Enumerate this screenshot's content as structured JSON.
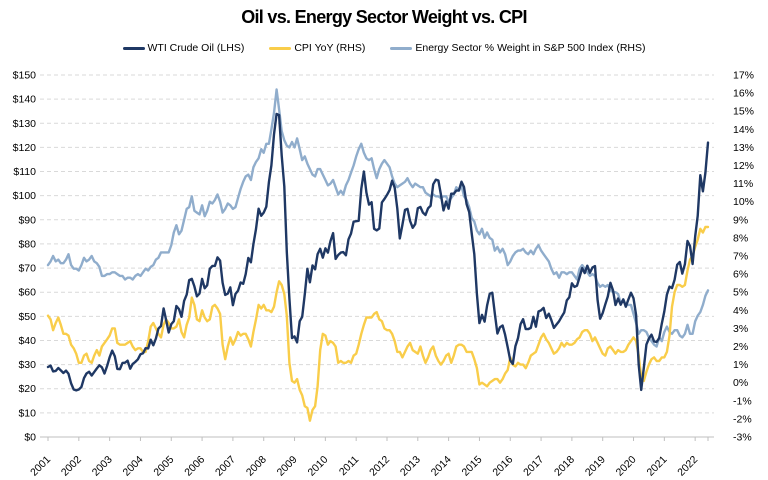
{
  "title": "Oil vs. Energy Sector Weight vs. CPI",
  "legend": [
    {
      "label": "WTI Crude Oil (LHS)",
      "color": "#1F3864"
    },
    {
      "label": "CPI YoY (RHS)",
      "color": "#F9CD4A"
    },
    {
      "label": "Energy Sector % Weight in S&P 500 Index (RHS)",
      "color": "#90ADCC"
    }
  ],
  "colors": {
    "gridline": "#D9D9D9",
    "axis_line": "#BFBFBF",
    "label_text": "#000000"
  },
  "chart_data": {
    "type": "line",
    "title": "Oil vs. Energy Sector Weight vs. CPI",
    "x_unit": "monthly",
    "x_range": [
      "2001-01",
      "2022-06"
    ],
    "x_tick_labels": [
      "2001",
      "2002",
      "2003",
      "2004",
      "2005",
      "2006",
      "2007",
      "2008",
      "2009",
      "2010",
      "2011",
      "2012",
      "2013",
      "2014",
      "2015",
      "2016",
      "2017",
      "2018",
      "2019",
      "2020",
      "2021",
      "2022"
    ],
    "left_axis": {
      "min": 0,
      "max": 150,
      "step": 10,
      "tick_labels": [
        "$150",
        "$140",
        "$130",
        "$120",
        "$110",
        "$100",
        "$90",
        "$80",
        "$70",
        "$60",
        "$50",
        "$40",
        "$30",
        "$20",
        "$10",
        "$0"
      ]
    },
    "right_axis": {
      "min": -3,
      "max": 17,
      "step": 1,
      "tick_labels": [
        "17%",
        "16%",
        "15%",
        "14%",
        "13%",
        "12%",
        "11%",
        "10%",
        "9%",
        "8%",
        "7%",
        "6%",
        "5%",
        "4%",
        "3%",
        "2%",
        "1%",
        "0%",
        "-1%",
        "-2%",
        "-3%"
      ]
    },
    "grid": "horizontal-dashed",
    "legend_position": "top",
    "series": [
      {
        "name": "WTI Crude Oil (LHS)",
        "axis": "left",
        "color": "#1F3864",
        "values": [
          29,
          29.6,
          27.2,
          27.4,
          28.6,
          27.6,
          26.5,
          27.5,
          26.2,
          22.2,
          19.7,
          19.3,
          19.7,
          20.7,
          24.4,
          26.3,
          27,
          25.5,
          26.9,
          28.4,
          29.7,
          28.9,
          26.3,
          29.4,
          33,
          35.8,
          33.5,
          28.2,
          28.1,
          30.7,
          30.8,
          31.6,
          28.3,
          30.3,
          31.1,
          32.2,
          34.3,
          34.7,
          36.8,
          36.7,
          40.3,
          38,
          40.8,
          44.9,
          46,
          53.3,
          48.5,
          43.3,
          46.8,
          48,
          54.3,
          53,
          49.8,
          56.4,
          59,
          65,
          65.5,
          62.4,
          58.3,
          59.4,
          65.5,
          61.6,
          62.9,
          69.7,
          70.9,
          70.9,
          74.4,
          73.1,
          63.9,
          58.9,
          59.4,
          62,
          54.6,
          59.3,
          60.6,
          64,
          63.5,
          67.5,
          74.2,
          72.4,
          79.9,
          86.2,
          94.6,
          91.7,
          93,
          95.4,
          105.6,
          112.6,
          125.4,
          133.9,
          133.4,
          116.6,
          103.9,
          76.7,
          57.4,
          41,
          41.7,
          39.2,
          48,
          49.8,
          59.2,
          69.7,
          64.1,
          71.1,
          69.5,
          75.8,
          78,
          74.3,
          78.2,
          76.4,
          81.2,
          84.5,
          73.8,
          75.4,
          76.4,
          76.6,
          75.3,
          81.9,
          84.3,
          89.2,
          89.4,
          89.6,
          102.9,
          110,
          101.3,
          96.3,
          97.3,
          86.3,
          85.6,
          86.4,
          97.2,
          98.6,
          100.3,
          102.3,
          106.2,
          103.3,
          94.7,
          82.3,
          87.9,
          94.1,
          94.5,
          89.5,
          86.7,
          88.2,
          94.8,
          95.3,
          93,
          92,
          94.8,
          95.8,
          104.7,
          106.6,
          106.3,
          100.5,
          93.9,
          97.6,
          94.6,
          100.8,
          100.8,
          102.1,
          102.2,
          105.8,
          103.6,
          96.5,
          93.2,
          84.4,
          75.8,
          59.3,
          47.2,
          50.6,
          47.8,
          54.5,
          59.3,
          59.8,
          51.2,
          42.9,
          45.5,
          46.2,
          42.4,
          37.2,
          31.7,
          30.3,
          37.6,
          41,
          46.7,
          48.8,
          44.7,
          44.7,
          45.2,
          49.8,
          45.7,
          52,
          52.5,
          53.5,
          49.3,
          51.1,
          48.5,
          45.2,
          46.6,
          48,
          49.8,
          51.6,
          56.6,
          57.9,
          63.7,
          62.2,
          62.7,
          66.3,
          70,
          67.9,
          71,
          68.1,
          70.2,
          70.8,
          56.7,
          49,
          51.4,
          55,
          58.2,
          63.9,
          60.8,
          54.7,
          57.4,
          54.8,
          57,
          54,
          57,
          59.8,
          57.5,
          50.5,
          29.9,
          19.5,
          28.6,
          38.3,
          40.8,
          42.4,
          39.6,
          39.4,
          41,
          47,
          52,
          59,
          62.3,
          61.7,
          65.2,
          71.4,
          72.5,
          67.7,
          71.6,
          81.2,
          79.2,
          71.7,
          83.2,
          91.6,
          108.5,
          101.8,
          109.5,
          122
        ]
      },
      {
        "name": "CPI YoY (RHS)",
        "axis": "right",
        "color": "#F9CD4A",
        "values": [
          3.7,
          3.5,
          2.9,
          3.3,
          3.6,
          3.2,
          2.7,
          2.7,
          2.6,
          2.1,
          1.9,
          1.6,
          1.1,
          1.1,
          1.5,
          1.6,
          1.2,
          1.1,
          1.5,
          1.8,
          1.5,
          2,
          2.2,
          2.4,
          2.6,
          3,
          3,
          2.2,
          2.1,
          2.1,
          2.1,
          2.2,
          2.3,
          2,
          1.8,
          1.9,
          1.9,
          1.7,
          1.7,
          2.3,
          3.1,
          3.3,
          3,
          2.7,
          2.5,
          3.2,
          3.5,
          3.3,
          3,
          3,
          3.1,
          3.5,
          2.8,
          2.5,
          3.2,
          3.6,
          4.7,
          4.3,
          3.5,
          3.4,
          4,
          3.6,
          3.4,
          3.5,
          4.2,
          4.3,
          4.1,
          3.8,
          2.1,
          1.3,
          2,
          2.5,
          2.1,
          2.4,
          2.8,
          2.6,
          2.7,
          2.7,
          2.4,
          2,
          2.8,
          3.5,
          4.3,
          4.1,
          4.3,
          4,
          4,
          3.9,
          4.2,
          5,
          5.6,
          5.4,
          4.9,
          3.7,
          1.1,
          0.1,
          0,
          0.2,
          -0.4,
          -0.7,
          -1.3,
          -1.4,
          -2.1,
          -1.5,
          -1.3,
          -0.2,
          1.8,
          2.7,
          2.6,
          2.1,
          2.3,
          2.2,
          2,
          1.1,
          1.2,
          1.1,
          1.1,
          1.2,
          1.1,
          1.5,
          1.6,
          2.1,
          2.7,
          3.2,
          3.6,
          3.6,
          3.6,
          3.8,
          3.9,
          3.5,
          3.4,
          3,
          2.9,
          2.9,
          2.7,
          2.3,
          1.7,
          1.7,
          1.4,
          1.7,
          2,
          2.2,
          1.8,
          1.7,
          1.6,
          2,
          1.5,
          1.1,
          1.4,
          1.8,
          2,
          1.5,
          1.2,
          1,
          1.2,
          1.5,
          1.6,
          1.1,
          1.5,
          2,
          2.1,
          2.1,
          2,
          1.7,
          1.7,
          1.7,
          1.3,
          0.8,
          -0.1,
          0,
          -0.1,
          -0.2,
          0,
          0.1,
          0.2,
          0.2,
          0,
          0.2,
          0.5,
          0.7,
          1.4,
          1,
          0.9,
          1.1,
          1,
          1,
          0.8,
          1.1,
          1.5,
          1.6,
          1.7,
          2.1,
          2.5,
          2.7,
          2.4,
          2.2,
          1.9,
          1.6,
          1.7,
          1.9,
          2.2,
          2,
          2.2,
          2.1,
          2.1,
          2.2,
          2.4,
          2.5,
          2.8,
          2.9,
          2.9,
          2.7,
          2.3,
          2.5,
          2.2,
          1.9,
          1.6,
          1.5,
          1.9,
          2,
          1.8,
          1.6,
          1.8,
          1.7,
          1.7,
          1.8,
          2.1,
          2.3,
          2.5,
          2.3,
          1.5,
          0.3,
          0.1,
          0.6,
          1,
          1.3,
          1.4,
          1.2,
          1.2,
          1.4,
          1.4,
          1.7,
          2.6,
          4.2,
          5,
          5.4,
          5.4,
          5.3,
          5.4,
          6.2,
          6.8,
          7,
          7.5,
          7.9,
          8.5,
          8.3,
          8.6,
          8.6
        ]
      },
      {
        "name": "Energy Sector % Weight in S&P 500 Index (RHS)",
        "axis": "right",
        "color": "#90ADCC",
        "values": [
          6.5,
          6.7,
          7,
          6.7,
          6.8,
          6.6,
          6.6,
          6.8,
          7.1,
          6.5,
          6.3,
          6.3,
          6.2,
          6.5,
          6.9,
          6.7,
          6.8,
          7,
          6.7,
          6.6,
          6.4,
          5.9,
          5.9,
          6,
          6,
          6.1,
          6.1,
          6,
          5.9,
          5.9,
          5.7,
          5.8,
          5.8,
          5.7,
          5.9,
          6,
          5.9,
          6.1,
          6.3,
          6.2,
          6.4,
          6.5,
          6.8,
          6.9,
          7.2,
          7.2,
          7.2,
          7.2,
          7.6,
          8.3,
          8.7,
          8.2,
          8.4,
          9,
          9.6,
          9.7,
          10.3,
          9.5,
          9.4,
          9.3,
          9.8,
          9.2,
          9.5,
          10,
          9.9,
          10.1,
          10.4,
          10,
          9.4,
          9.6,
          9.9,
          9.8,
          9.6,
          9.7,
          10.2,
          10.7,
          11.1,
          11.4,
          11.5,
          11.2,
          11.9,
          12.2,
          12.4,
          12.9,
          12.7,
          13.2,
          13.2,
          14,
          14.9,
          16.2,
          15.1,
          13.9,
          13.4,
          13.1,
          13,
          13.3,
          13,
          13.5,
          12.9,
          12.3,
          12.5,
          12.1,
          11.8,
          11.5,
          11.4,
          11.8,
          11.8,
          11.5,
          11.2,
          10.9,
          11,
          11.2,
          10.8,
          10.4,
          10.6,
          10.4,
          10.9,
          11.2,
          11.6,
          12,
          12.5,
          12.9,
          13.2,
          12.7,
          12.4,
          12.3,
          12.4,
          11.8,
          11.3,
          11.8,
          12.1,
          12.3,
          12.1,
          11.9,
          11.4,
          11,
          10.8,
          10.9,
          11,
          11.1,
          11.3,
          11,
          10.8,
          11,
          10.9,
          10.8,
          10.8,
          10.5,
          10.4,
          10.3,
          10.4,
          10.3,
          10.3,
          10.2,
          10.3,
          10.3,
          10,
          10.2,
          10.4,
          10.8,
          10.6,
          10.9,
          10.3,
          10.1,
          9.7,
          9.1,
          8.9,
          8.4,
          8.2,
          8.5,
          8,
          8.3,
          8,
          7.9,
          7.3,
          7.5,
          7.2,
          7.4,
          7.1,
          6.5,
          6.7,
          7,
          7.2,
          7.3,
          7.3,
          7.4,
          7.2,
          7.1,
          7.3,
          7.1,
          7.4,
          7.6,
          7.3,
          7.1,
          6.9,
          6.7,
          6.3,
          6,
          6.1,
          5.8,
          6.1,
          6.1,
          6,
          6.1,
          6.1,
          5.9,
          5.7,
          6.3,
          6.5,
          6.3,
          6.1,
          5.9,
          6,
          5.9,
          5.5,
          5.3,
          5.4,
          5.3,
          5.4,
          5.1,
          5,
          5,
          4.9,
          4.4,
          4.6,
          4.3,
          4.3,
          4.3,
          3.8,
          3.3,
          2.7,
          2.9,
          2.9,
          2.8,
          2.5,
          2.3,
          2.1,
          2,
          2.5,
          2.3,
          2.8,
          3.1,
          2.8,
          2.7,
          2.9,
          2.9,
          2.6,
          2.5,
          2.7,
          3.2,
          2.7,
          2.7,
          3.4,
          3.7,
          3.9,
          4.3,
          4.8,
          5.1
        ]
      }
    ]
  }
}
